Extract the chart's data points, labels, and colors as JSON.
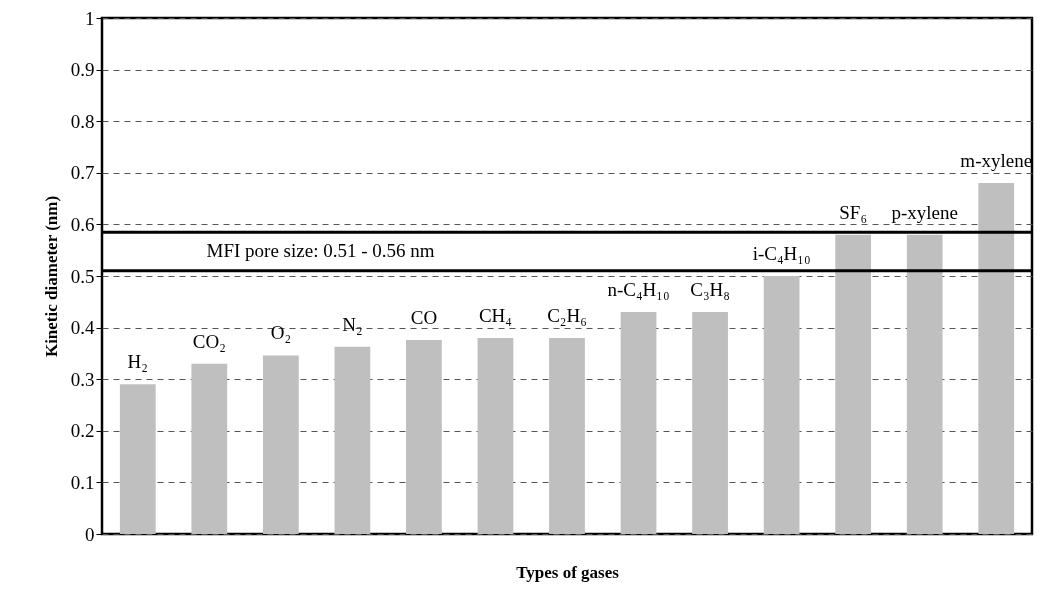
{
  "chart_data": {
    "type": "bar",
    "ylabel": "Kinetic diameter (nm)",
    "xlabel": "Types of gases",
    "categories": [
      "H₂",
      "CO₂",
      "O₂",
      "N₂",
      "CO",
      "CH₄",
      "C₂H₆",
      "n-C₄H₁₀",
      "C₃H₈",
      "i-C₄H₁₀",
      "SF₆",
      "p-xylene",
      "m-xylene"
    ],
    "values": [
      0.29,
      0.33,
      0.346,
      0.363,
      0.376,
      0.38,
      0.38,
      0.43,
      0.43,
      0.5,
      0.58,
      0.58,
      0.68
    ],
    "color": "#bfbfbf",
    "ylim": [
      0,
      1
    ],
    "yticks": [
      0,
      0.1,
      0.2,
      0.3,
      0.4,
      0.5,
      0.6,
      0.7,
      0.8,
      0.9,
      1
    ],
    "grid": "y",
    "tick_labels": "y",
    "ref_lines": [
      {
        "axis": "y",
        "value": 0.51,
        "color": "#000000"
      },
      {
        "axis": "y",
        "value": 0.585,
        "color": "#000000"
      }
    ],
    "annotations": [
      "MFI pore size: 0.51 - 0.56 nm"
    ]
  }
}
